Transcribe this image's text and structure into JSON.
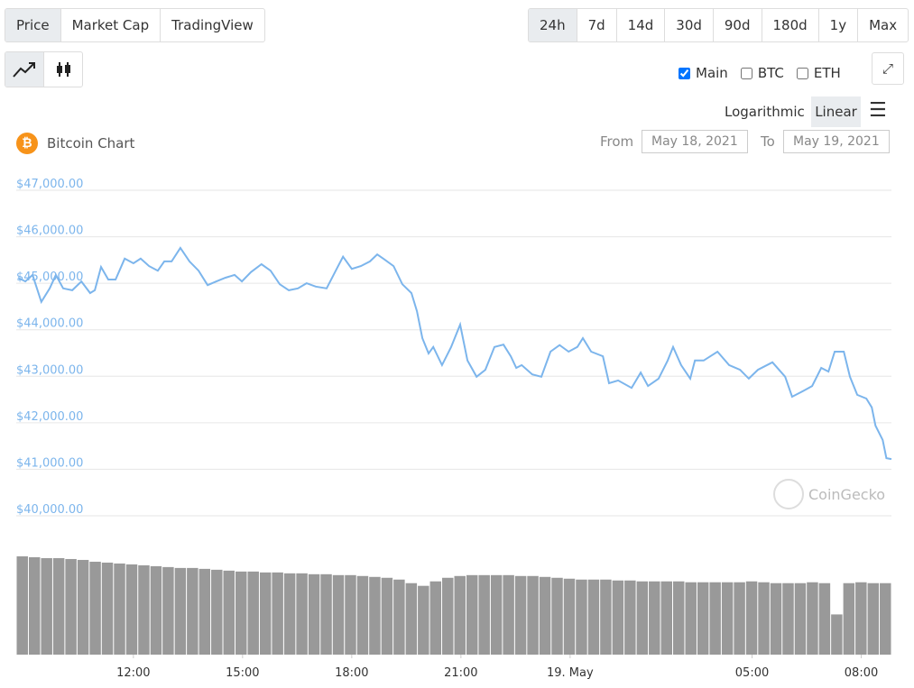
{
  "ui": {
    "view_tabs": [
      "Price",
      "Market Cap",
      "TradingView"
    ],
    "range_tabs": [
      "24h",
      "7d",
      "14d",
      "30d",
      "90d",
      "180d",
      "1y",
      "Max"
    ],
    "checkboxes": [
      {
        "label": "Main",
        "checked": true
      },
      {
        "label": "BTC",
        "checked": false
      },
      {
        "label": "ETH",
        "checked": false
      }
    ],
    "scale_options": [
      "Logarithmic",
      "Linear"
    ],
    "from_label": "From",
    "from_date": "May 18, 2021",
    "to_label": "To",
    "to_date": "May 19, 2021",
    "watermark": "CoinGecko"
  },
  "chart_data": {
    "type": "line",
    "title": "Bitcoin Chart",
    "x": [
      8.83,
      9.03,
      9.23,
      9.47,
      9.7,
      9.87,
      10.07,
      10.32,
      10.57,
      10.81,
      10.94,
      11.11,
      11.31,
      11.51,
      11.76,
      12.0,
      12.2,
      12.43,
      12.67,
      12.85,
      13.05,
      13.29,
      13.54,
      13.79,
      14.04,
      14.28,
      14.53,
      14.78,
      14.98,
      15.23,
      15.52,
      15.77,
      16.02,
      16.27,
      16.52,
      16.76,
      17.01,
      17.31,
      17.56,
      17.76,
      18.0,
      18.25,
      18.5,
      18.7,
      18.9,
      19.15,
      19.39,
      19.64,
      19.79,
      19.94,
      20.11,
      20.24,
      20.48,
      20.73,
      20.98,
      21.18,
      21.43,
      21.67,
      21.92,
      22.17,
      22.37,
      22.52,
      22.67,
      22.96,
      23.21,
      23.46,
      23.71,
      23.96,
      24.2,
      24.35,
      24.58,
      24.9,
      25.07,
      25.32,
      25.69,
      25.94,
      26.14,
      26.43,
      26.68,
      26.83,
      27.05,
      27.3,
      27.43,
      27.67,
      28.05,
      28.37,
      28.67,
      28.91,
      29.16,
      29.56,
      29.91,
      30.1,
      30.35,
      30.65,
      30.9,
      31.1,
      31.27,
      31.52,
      31.69,
      31.89,
      32.14,
      32.29,
      32.39,
      32.59,
      32.69,
      32.83
    ],
    "series": [
      {
        "color": "#7cb5ec",
        "values": [
          45120,
          45040,
          45180,
          44600,
          44890,
          45180,
          44890,
          44850,
          45040,
          44790,
          44850,
          45350,
          45080,
          45080,
          45530,
          45430,
          45530,
          45370,
          45270,
          45470,
          45470,
          45760,
          45470,
          45270,
          44960,
          45040,
          45120,
          45180,
          45040,
          45240,
          45410,
          45270,
          44980,
          44850,
          44890,
          45000,
          44930,
          44890,
          45270,
          45570,
          45310,
          45370,
          45470,
          45620,
          45510,
          45370,
          44980,
          44790,
          44400,
          43820,
          43490,
          43630,
          43240,
          43630,
          44110,
          43340,
          42990,
          43140,
          43630,
          43680,
          43430,
          43180,
          43240,
          43040,
          42990,
          43530,
          43670,
          43530,
          43630,
          43820,
          43530,
          43430,
          42850,
          42910,
          42750,
          43080,
          42790,
          42950,
          43340,
          43630,
          43240,
          42950,
          43340,
          43340,
          43530,
          43240,
          43140,
          42950,
          43140,
          43300,
          42990,
          42560,
          42660,
          42790,
          43180,
          43100,
          43530,
          43530,
          42990,
          42600,
          42520,
          42330,
          41940,
          41630,
          41240,
          41220
        ]
      }
    ],
    "volume": {
      "color": "#999999",
      "values": [
        110,
        109,
        108,
        108,
        107,
        106,
        104,
        103,
        102,
        101,
        100,
        99,
        98,
        97,
        97,
        96,
        95,
        94,
        93,
        93,
        92,
        92,
        91,
        91,
        90,
        90,
        89,
        89,
        88,
        87,
        86,
        84,
        80,
        77,
        82,
        86,
        88,
        89,
        89,
        89,
        89,
        88,
        88,
        87,
        86,
        85,
        84,
        84,
        84,
        83,
        83,
        82,
        82,
        82,
        82,
        81,
        81,
        81,
        81,
        81,
        82,
        81,
        80,
        80,
        80,
        81,
        80,
        45,
        80,
        81,
        80,
        80
      ]
    },
    "xlim": [
      8.83,
      32.83
    ],
    "xticks": [
      {
        "value": 12,
        "label": "12:00"
      },
      {
        "value": 15,
        "label": "15:00"
      },
      {
        "value": 18,
        "label": "18:00"
      },
      {
        "value": 21,
        "label": "21:00"
      },
      {
        "value": 24,
        "label": "19. May"
      },
      {
        "value": 29,
        "label": "05:00"
      },
      {
        "value": 32,
        "label": "08:00"
      }
    ],
    "ylim": [
      40000,
      47000
    ],
    "yticks": [
      {
        "value": 40000,
        "label": "$40,000.00"
      },
      {
        "value": 41000,
        "label": "$41,000.00"
      },
      {
        "value": 42000,
        "label": "$42,000.00"
      },
      {
        "value": 43000,
        "label": "$43,000.00"
      },
      {
        "value": 44000,
        "label": "$44,000.00"
      },
      {
        "value": 45000,
        "label": "$45,000.00"
      },
      {
        "value": 46000,
        "label": "$46,000.00"
      },
      {
        "value": 47000,
        "label": "$47,000.00"
      }
    ],
    "grid": true
  }
}
